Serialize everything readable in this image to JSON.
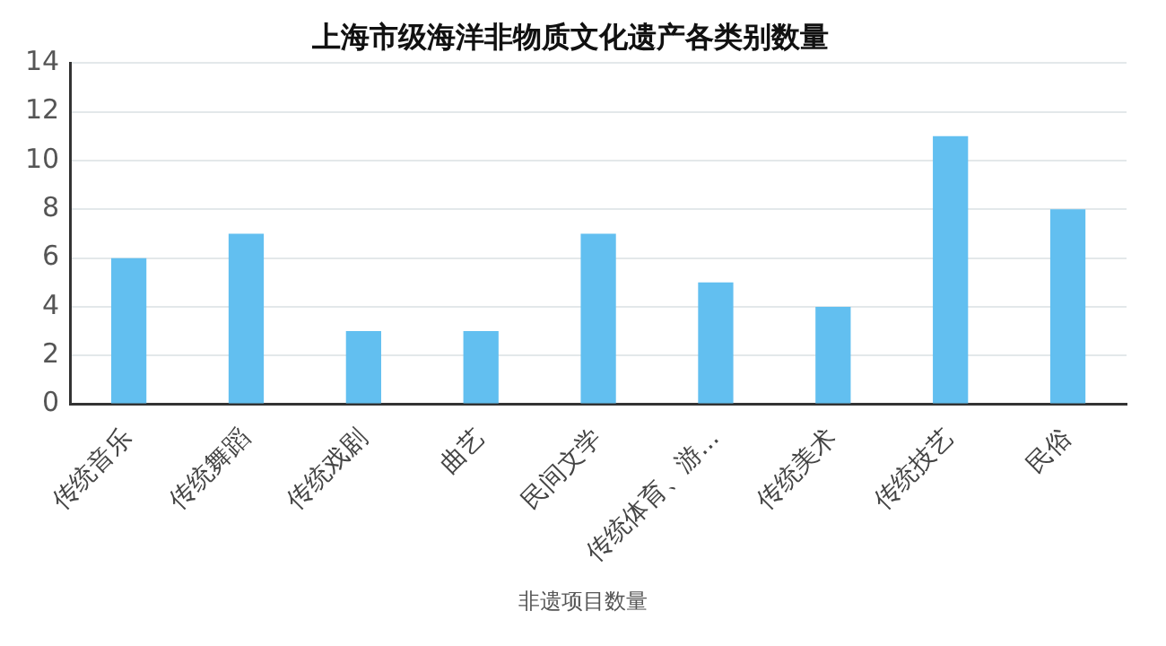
{
  "chart_data": {
    "type": "bar",
    "title": "上海市级海洋非物质文化遗产各类别数量",
    "categories": [
      "传统音乐",
      "传统舞蹈",
      "传统戏剧",
      "曲艺",
      "民间文学",
      "传统体育、游...",
      "传统美术",
      "传统技艺",
      "民俗"
    ],
    "series": [
      {
        "name": "非遗项目数量",
        "color": "#62bff0",
        "values": [
          6,
          7,
          3,
          3,
          7,
          5,
          4,
          11,
          8
        ]
      }
    ],
    "ylim": [
      0,
      14
    ],
    "yticks": [
      0,
      2,
      4,
      6,
      8,
      10,
      12,
      14
    ],
    "grid": "y",
    "legend": "bottom"
  }
}
